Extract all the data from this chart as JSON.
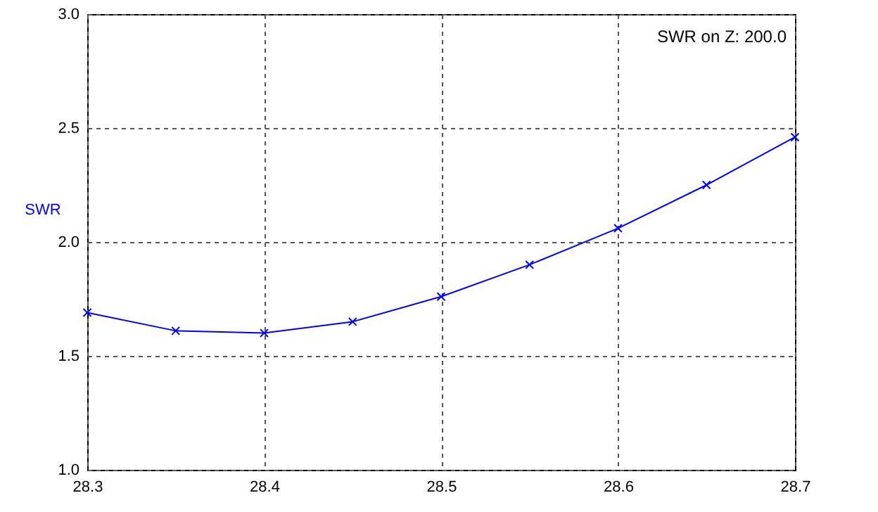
{
  "chart_data": {
    "type": "line",
    "ylabel": "SWR",
    "annotations": [
      "SWR on Z: 200.0"
    ],
    "x": [
      28.3,
      28.35,
      28.4,
      28.45,
      28.5,
      28.55,
      28.6,
      28.65,
      28.7
    ],
    "series": [
      {
        "color": "#0000ff",
        "values": [
          1.69,
          1.61,
          1.6,
          1.65,
          1.76,
          1.9,
          2.06,
          2.25,
          2.46
        ]
      }
    ],
    "xlim": [
      28.3,
      28.7
    ],
    "xticks": [
      28.3,
      28.4,
      28.5,
      28.6,
      28.7
    ],
    "ylim": [
      1,
      3
    ],
    "yticks": [
      {
        "value": 1,
        "label": "1.0"
      },
      {
        "value": 1.5,
        "label": "1.5"
      },
      {
        "value": 2,
        "label": "2.0"
      },
      {
        "value": 2.5,
        "label": "2.5"
      },
      {
        "value": 3,
        "label": "3.0"
      }
    ],
    "grid": true,
    "marker": "cross",
    "line_style": "solid"
  }
}
